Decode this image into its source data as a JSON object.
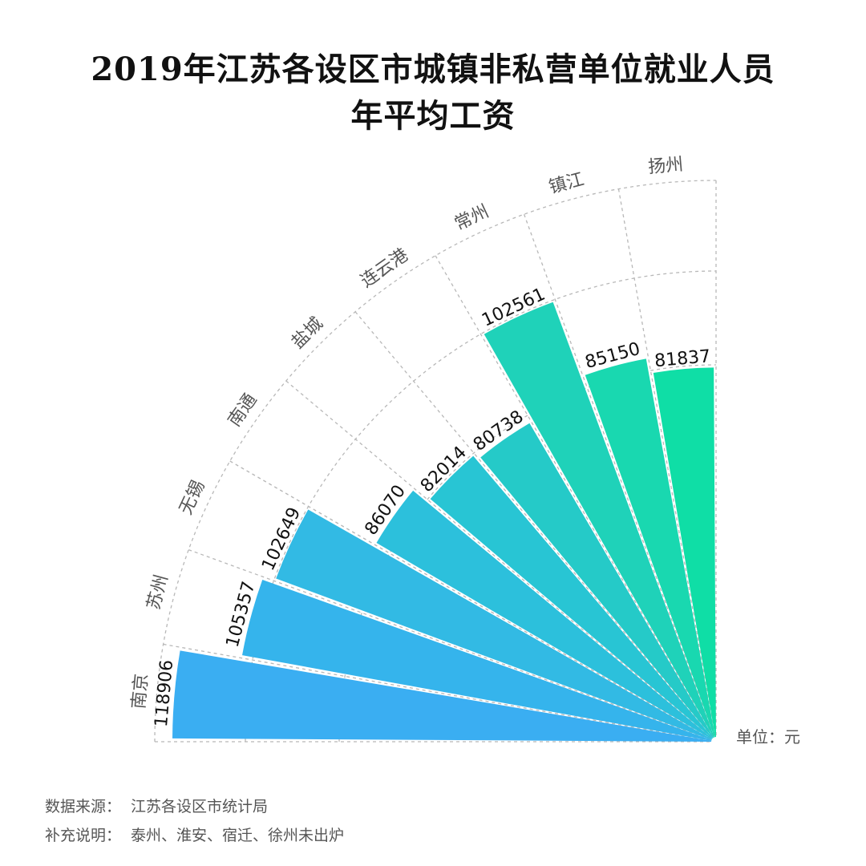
{
  "title": {
    "line1": "2019年江苏各设区市城镇非私营单位就业人员",
    "line2": "年平均工资"
  },
  "unit_label": "单位：元",
  "footer": {
    "source_label": "数据来源：",
    "source_value": "江苏各设区市统计局",
    "note_label": "补充说明：",
    "note_value": "泰州、淮安、宿迁、徐州未出炉"
  },
  "chart_data": {
    "type": "bar",
    "subtype": "polar-rose (quarter circle)",
    "title": "2019年江苏各设区市城镇非私营单位就业人员年平均工资",
    "categories": [
      "南京",
      "苏州",
      "无锡",
      "南通",
      "盐城",
      "连云港",
      "常州",
      "镇江",
      "扬州"
    ],
    "values": [
      118906,
      105357,
      102649,
      86070,
      82014,
      80738,
      102561,
      85150,
      81837
    ],
    "unit": "元",
    "colors": [
      "#3aaef2",
      "#35b4ec",
      "#32bae4",
      "#2cc0dc",
      "#28c5d4",
      "#25cac8",
      "#1fd2b9",
      "#19d8b0",
      "#0fdea6"
    ],
    "grid": true,
    "legend": "none"
  }
}
